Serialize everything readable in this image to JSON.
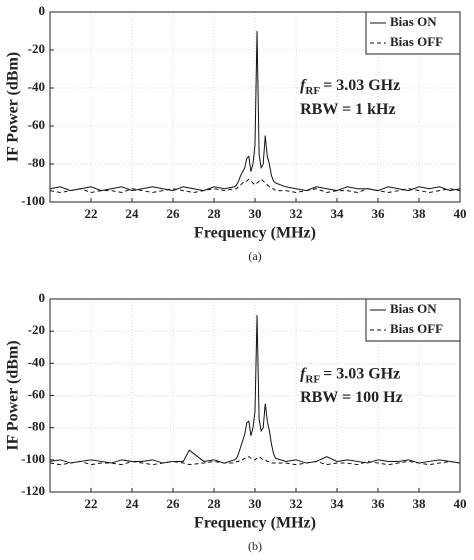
{
  "chart_data": [
    {
      "type": "line",
      "caption": "(a)",
      "x_label": "Frequency (MHz)",
      "y_label": "IF Power (dBm)",
      "xlim": [
        20,
        40
      ],
      "xticks": [
        22,
        24,
        26,
        28,
        30,
        32,
        34,
        36,
        38,
        40
      ],
      "ylim": [
        -100,
        0
      ],
      "yticks": [
        -100,
        -80,
        -60,
        -40,
        -20,
        0
      ],
      "grid": true,
      "legend": "upper right",
      "annotation": {
        "symbol": "f",
        "subscript": "RF",
        "text": "= 3.03 GHz",
        "line2": "RBW = 1 kHz"
      },
      "x": [
        20,
        20.5,
        21,
        21.5,
        22,
        22.5,
        23,
        23.5,
        24,
        24.5,
        25,
        25.5,
        26,
        26.5,
        27,
        27.5,
        28,
        28.5,
        29,
        29.1,
        29.2,
        29.3,
        29.4,
        29.5,
        29.6,
        29.7,
        29.8,
        29.9,
        30,
        30.1,
        30.2,
        30.3,
        30.4,
        30.5,
        30.6,
        30.7,
        30.8,
        30.9,
        31,
        31.5,
        32,
        32.5,
        33,
        33.5,
        34,
        34.5,
        35,
        35.5,
        36,
        36.5,
        37,
        37.5,
        38,
        38.5,
        39,
        39.5,
        40
      ],
      "series": [
        {
          "name": "Bias ON",
          "color": "#111111",
          "linestyle": "solid",
          "values": [
            -93,
            -92,
            -94,
            -93,
            -92,
            -94,
            -93,
            -92,
            -94,
            -93,
            -92,
            -93,
            -94,
            -92,
            -93,
            -94,
            -92,
            -93,
            -92,
            -91,
            -89,
            -86,
            -84,
            -82,
            -77,
            -76,
            -84,
            -80,
            -70,
            -10,
            -75,
            -82,
            -80,
            -65,
            -76,
            -80,
            -86,
            -89,
            -90,
            -92,
            -93,
            -94,
            -92,
            -93,
            -94,
            -92,
            -93,
            -93,
            -94,
            -92,
            -93,
            -94,
            -92,
            -93,
            -92,
            -94,
            -93
          ]
        },
        {
          "name": "Bias OFF",
          "color": "#111111",
          "linestyle": "dashed",
          "values": [
            -94,
            -95,
            -94,
            -93,
            -95,
            -94,
            -94,
            -95,
            -93,
            -94,
            -95,
            -94,
            -93,
            -94,
            -95,
            -94,
            -93,
            -94,
            -93,
            -93,
            -92,
            -91,
            -90,
            -89,
            -89,
            -88,
            -89,
            -90,
            -91,
            -90,
            -89,
            -88,
            -89,
            -90,
            -91,
            -92,
            -93,
            -93,
            -94,
            -94,
            -95,
            -94,
            -93,
            -95,
            -94,
            -94,
            -95,
            -93,
            -94,
            -95,
            -94,
            -93,
            -94,
            -95,
            -94,
            -93,
            -94
          ]
        }
      ]
    },
    {
      "type": "line",
      "caption": "(b)",
      "x_label": "Frequency (MHz)",
      "y_label": "IF Power (dBm)",
      "xlim": [
        20,
        40
      ],
      "xticks": [
        22,
        24,
        26,
        28,
        30,
        32,
        34,
        36,
        38,
        40
      ],
      "ylim": [
        -120,
        0
      ],
      "yticks": [
        -120,
        -100,
        -80,
        -60,
        -40,
        -20,
        0
      ],
      "grid": true,
      "legend": "upper right",
      "annotation": {
        "symbol": "f",
        "subscript": "RF",
        "text": "= 3.03 GHz",
        "line2": "RBW = 100 Hz"
      },
      "x": [
        20,
        20.5,
        21,
        21.5,
        22,
        22.5,
        23,
        23.5,
        24,
        24.5,
        25,
        25.5,
        26,
        26.5,
        26.8,
        27.5,
        28,
        28.5,
        29,
        29.1,
        29.2,
        29.3,
        29.4,
        29.5,
        29.6,
        29.7,
        29.8,
        29.9,
        30,
        30.1,
        30.2,
        30.3,
        30.4,
        30.5,
        30.6,
        30.7,
        30.8,
        30.9,
        31,
        31.5,
        32,
        32.5,
        33,
        33.5,
        34,
        34.5,
        35,
        35.5,
        36,
        36.5,
        37,
        37.5,
        38,
        38.5,
        39,
        39.5,
        40
      ],
      "series": [
        {
          "name": "Bias ON",
          "color": "#111111",
          "linestyle": "solid",
          "values": [
            -101,
            -100,
            -102,
            -101,
            -100,
            -101,
            -102,
            -100,
            -101,
            -101,
            -100,
            -102,
            -101,
            -101,
            -94,
            -101,
            -100,
            -102,
            -100,
            -99,
            -96,
            -92,
            -88,
            -84,
            -77,
            -76,
            -85,
            -80,
            -70,
            -10,
            -75,
            -82,
            -80,
            -65,
            -76,
            -82,
            -90,
            -96,
            -99,
            -101,
            -100,
            -102,
            -101,
            -98,
            -101,
            -100,
            -101,
            -102,
            -100,
            -101,
            -101,
            -100,
            -102,
            -101,
            -100,
            -101,
            -102
          ]
        },
        {
          "name": "Bias OFF",
          "color": "#111111",
          "linestyle": "dashed",
          "values": [
            -102,
            -103,
            -102,
            -101,
            -103,
            -102,
            -102,
            -103,
            -101,
            -102,
            -103,
            -102,
            -101,
            -102,
            -103,
            -102,
            -101,
            -102,
            -102,
            -101,
            -101,
            -100,
            -100,
            -99,
            -99,
            -98,
            -99,
            -100,
            -100,
            -99,
            -98,
            -99,
            -100,
            -100,
            -101,
            -101,
            -102,
            -102,
            -102,
            -102,
            -103,
            -102,
            -101,
            -103,
            -102,
            -102,
            -103,
            -101,
            -102,
            -103,
            -102,
            -101,
            -102,
            -103,
            -102,
            -101,
            -102
          ]
        }
      ]
    }
  ]
}
